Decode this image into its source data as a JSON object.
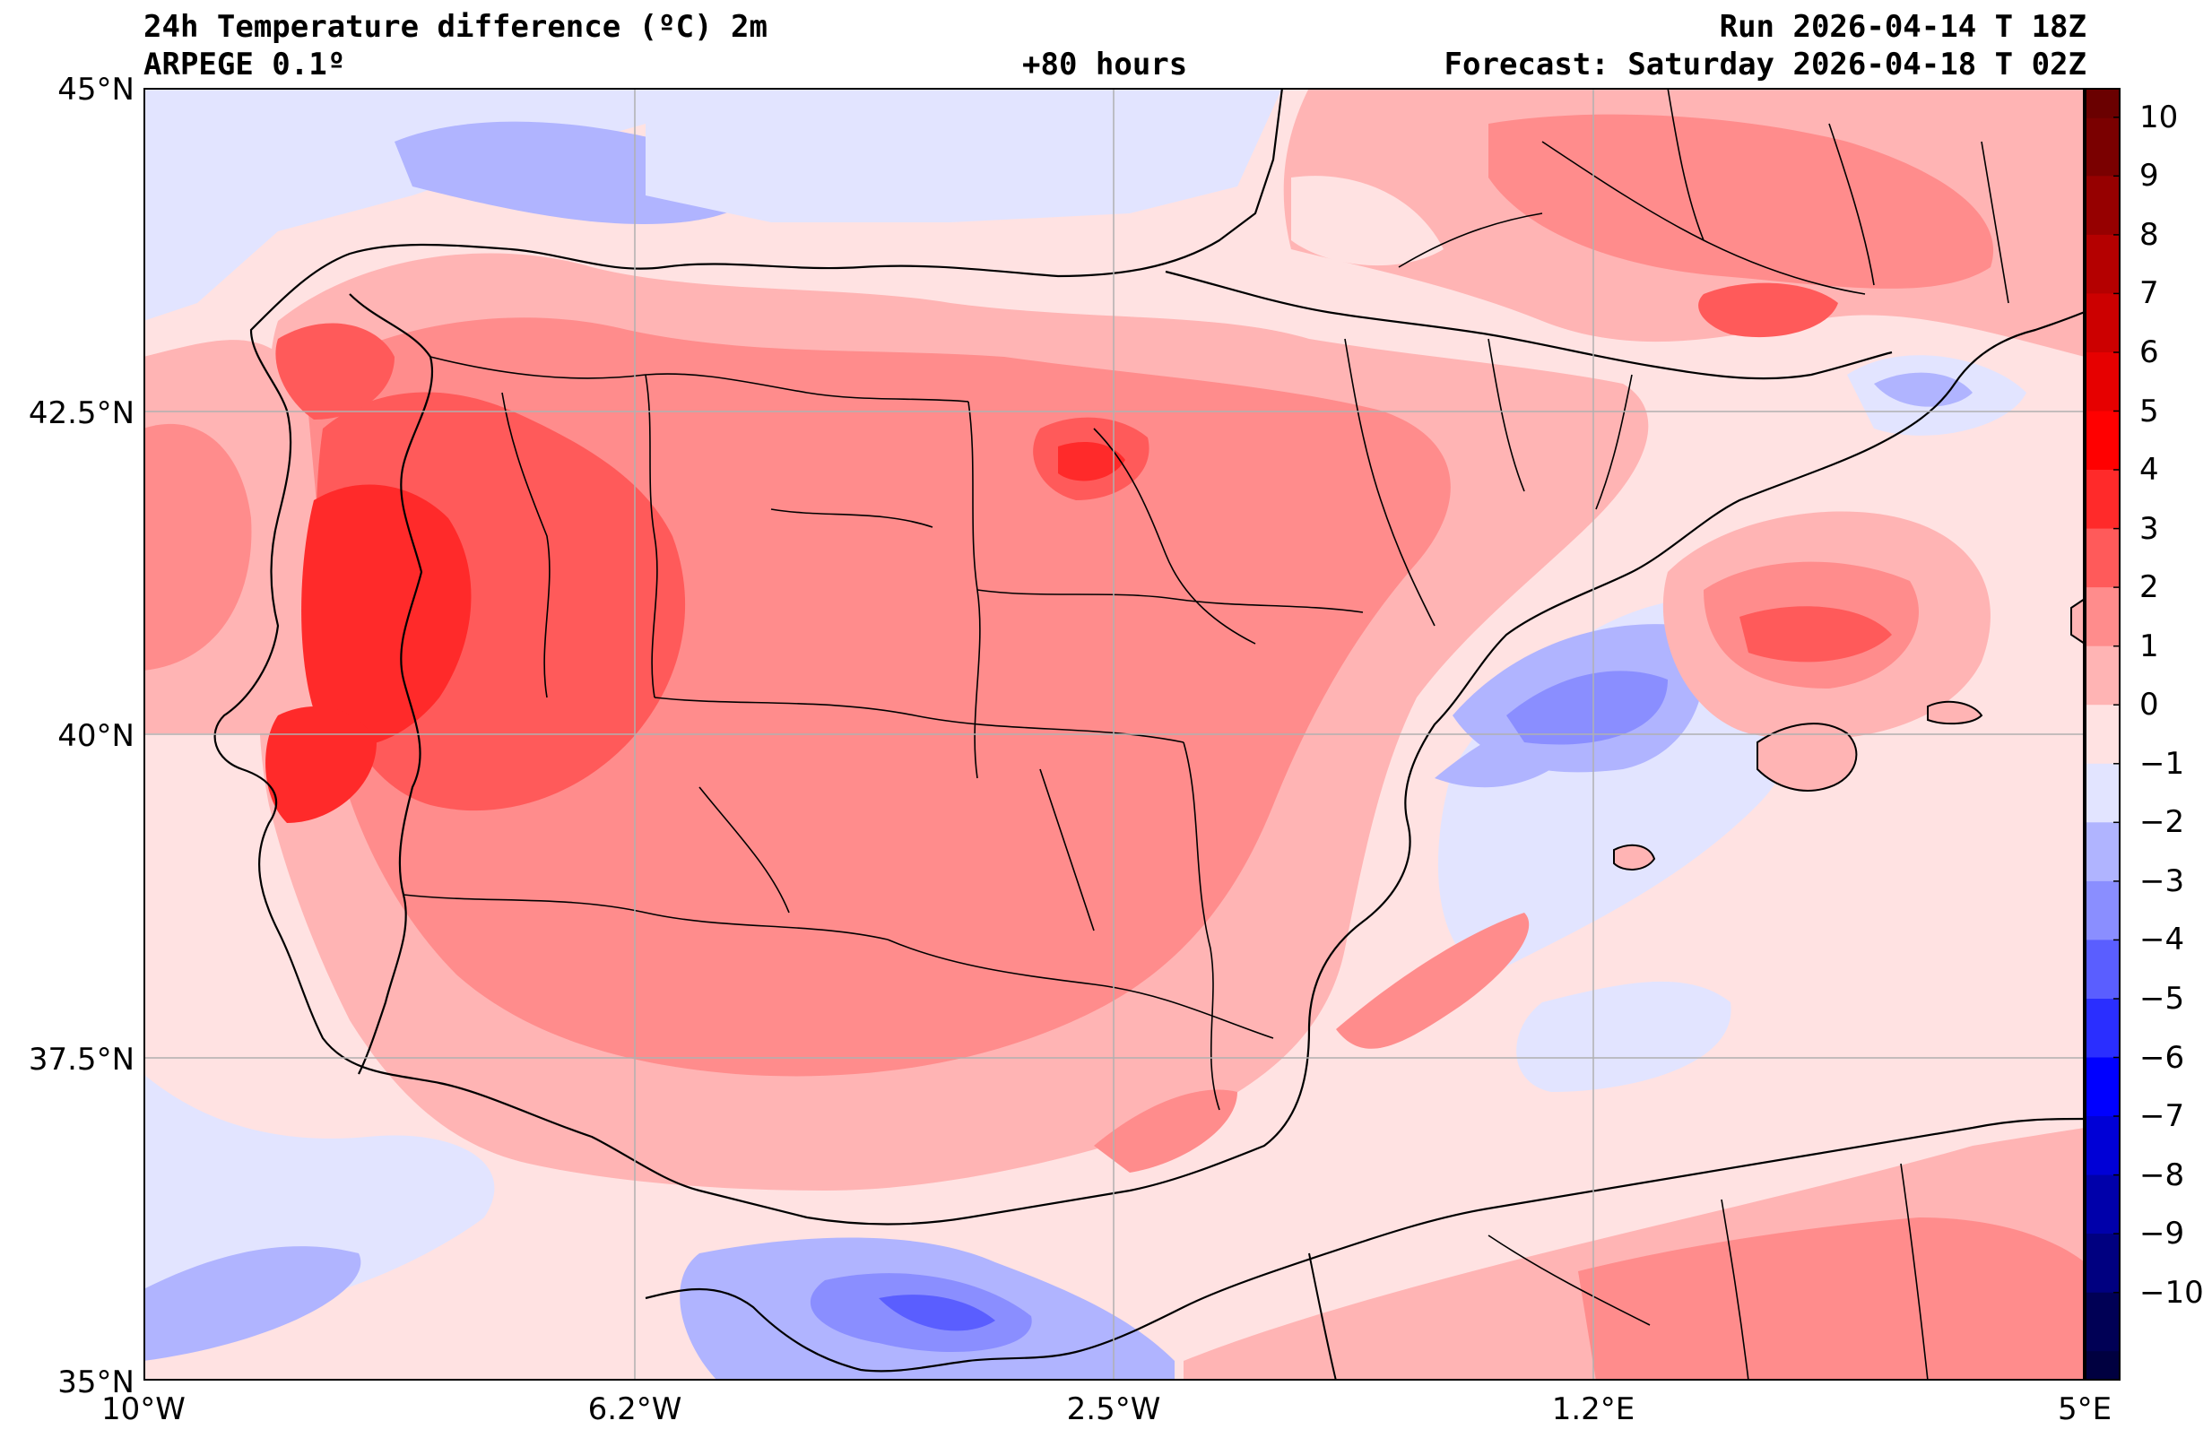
{
  "header": {
    "title": "24h Temperature difference (ºC) 2m",
    "model": "ARPEGE 0.1º",
    "lead_time": "+80 hours",
    "run": "Run 2026-04-14 T 18Z",
    "forecast": "Forecast: Saturday 2026-04-18 T 02Z"
  },
  "map": {
    "variable": "24h 2m temperature difference",
    "unit": "ºC",
    "lon_range": [
      -10,
      5
    ],
    "lat_range": [
      35,
      45
    ],
    "gridlines": true,
    "lat_labels": [
      "45°N",
      "42.5°N",
      "40°N",
      "37.5°N",
      "35°N"
    ],
    "lon_labels": [
      "10°W",
      "6.2°W",
      "2.5°W",
      "1.2°E",
      "5°E"
    ],
    "features": [
      "coastlines",
      "country-borders",
      "region-borders"
    ]
  },
  "colorbar": {
    "labels": [
      "10",
      "9",
      "8",
      "7",
      "6",
      "5",
      "4",
      "3",
      "2",
      "1",
      "0",
      "−1",
      "−2",
      "−3",
      "−4",
      "−5",
      "−6",
      "−7",
      "−8",
      "−9",
      "−10"
    ],
    "colors_top_to_bottom": [
      "#7a0000",
      "#960000",
      "#b40000",
      "#cc0000",
      "#e60000",
      "#ff0000",
      "#ff2a2a",
      "#ff5a5a",
      "#ff8c8c",
      "#ffb4b4",
      "#ffe2e2",
      "#e2e4ff",
      "#b0b4ff",
      "#8a8eff",
      "#5a5eff",
      "#2a2eff",
      "#0000ff",
      "#0000d6",
      "#0000aa",
      "#000080",
      "#000055"
    ]
  }
}
